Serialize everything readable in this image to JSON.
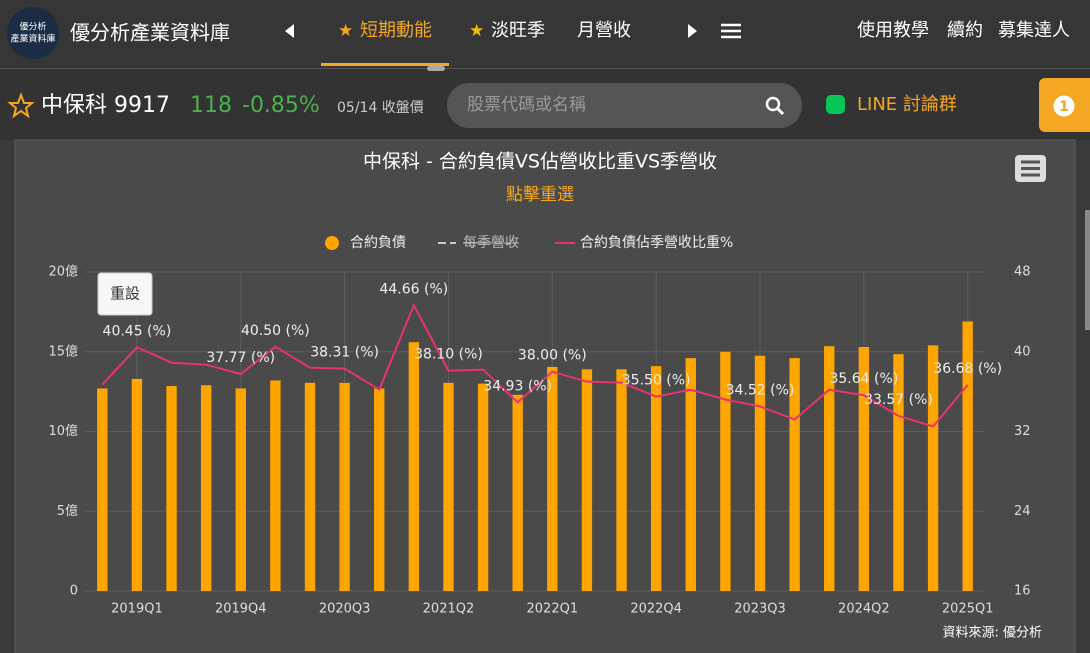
{
  "header": {
    "logo": [
      "優分析",
      "產業資料庫"
    ],
    "title": "優分析產業資料庫",
    "nav": [
      "短期動能",
      "淡旺季",
      "月營收"
    ],
    "links": [
      "使用教學",
      "續約",
      "募集達人"
    ]
  },
  "stock": {
    "name": "中保科 9917",
    "price": "118",
    "change": "-0.85%",
    "note": "05/14 收盤價",
    "search": "股票代碼或名稱",
    "line": "LINE 討論群",
    "badge": "1"
  },
  "chart_data": {
    "type": "bar-line",
    "title": "中保科 - 合約負債VS佔營收比重VS季營收",
    "subtitle": "點擊重選",
    "reset": "重設",
    "source": "資料來源: 優分析",
    "categories": [
      null,
      "2019Q1",
      null,
      null,
      "2019Q4",
      null,
      null,
      "2020Q3",
      null,
      null,
      "2021Q2",
      null,
      null,
      "2022Q1",
      null,
      null,
      "2022Q4",
      null,
      null,
      "2023Q3",
      null,
      null,
      "2024Q2",
      null,
      null,
      "2025Q1"
    ],
    "series": [
      {
        "name": "合約負債",
        "type": "bar",
        "color": "#ffa500",
        "values": [
          12.7,
          13.3,
          12.85,
          12.9,
          12.7,
          13.2,
          13.05,
          13.05,
          12.7,
          15.6,
          13.05,
          13.0,
          12.3,
          14.05,
          13.9,
          13.9,
          14.1,
          14.6,
          15.0,
          14.75,
          14.6,
          15.35,
          15.3,
          14.85,
          15.4,
          16.9
        ]
      },
      {
        "name": "每季營收",
        "type": "line",
        "color": "#cccccc",
        "visible": false
      },
      {
        "name": "合約負債佔季營收比重%",
        "type": "line",
        "axis": "y2",
        "color": "#e8336f",
        "values": [
          36.7,
          40.45,
          38.9,
          38.7,
          37.77,
          40.5,
          38.4,
          38.31,
          36.2,
          44.66,
          38.1,
          38.2,
          34.93,
          38.0,
          37.0,
          36.9,
          35.5,
          36.2,
          35.2,
          34.52,
          33.2,
          36.2,
          35.64,
          33.57,
          32.5,
          36.68
        ],
        "value_labels": [
          null,
          "40.45 (%)",
          null,
          null,
          "37.77 (%)",
          "40.50 (%)",
          null,
          "38.31 (%)",
          null,
          "44.66 (%)",
          "38.10 (%)",
          null,
          "34.93 (%)",
          "38.00 (%)",
          null,
          null,
          "35.50 (%)",
          null,
          null,
          "34.52 (%)",
          null,
          null,
          "35.64 (%)",
          "33.57 (%)",
          null,
          "36.68 (%)"
        ]
      }
    ],
    "ylim": [
      0,
      20
    ],
    "yticks": [
      0,
      {
        "value": 5,
        "label": "5億"
      },
      {
        "value": 10,
        "label": "10億"
      },
      {
        "value": 15,
        "label": "15億"
      },
      {
        "value": 20,
        "label": "20億"
      }
    ],
    "y2lim": [
      16,
      48
    ],
    "y2ticks": [
      16,
      24,
      32,
      40,
      48
    ],
    "grid": true
  }
}
